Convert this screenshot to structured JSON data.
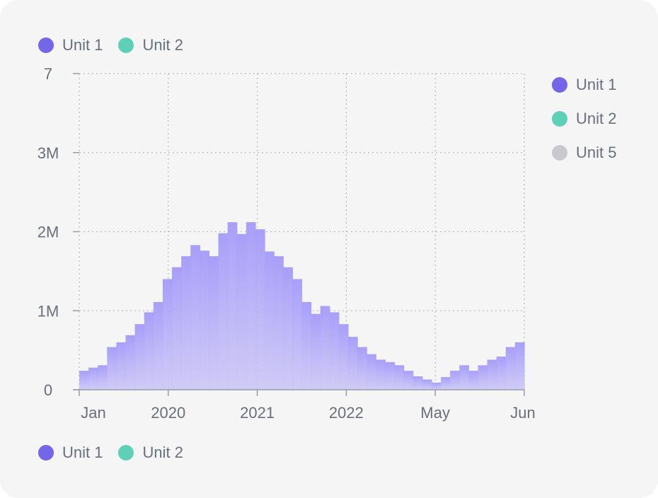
{
  "legend_top": [
    {
      "label": "Unit 1",
      "color": "#7366e8"
    },
    {
      "label": "Unit 2",
      "color": "#5fd0b8"
    }
  ],
  "legend_right": [
    {
      "label": "Unit 1",
      "color": "#7366e8"
    },
    {
      "label": "Unit 2",
      "color": "#5fd0b8"
    },
    {
      "label": "Unit 5",
      "color": "#c7c9cf"
    }
  ],
  "legend_bottom": [
    {
      "label": "Unit 1",
      "color": "#7366e8"
    },
    {
      "label": "Unit 2",
      "color": "#5fd0b8"
    }
  ],
  "chart_data": {
    "type": "area",
    "step": true,
    "series": [
      {
        "name": "Unit 1",
        "color": "#a79cf8",
        "values": [
          0.24,
          0.28,
          0.31,
          0.54,
          0.6,
          0.69,
          0.83,
          0.98,
          1.11,
          1.4,
          1.55,
          1.69,
          1.83,
          1.76,
          1.69,
          1.98,
          2.12,
          1.97,
          2.12,
          2.03,
          1.75,
          1.69,
          1.55,
          1.4,
          1.11,
          0.96,
          1.06,
          0.98,
          0.83,
          0.67,
          0.54,
          0.45,
          0.38,
          0.35,
          0.31,
          0.24,
          0.17,
          0.13,
          0.09,
          0.16,
          0.24,
          0.31,
          0.24,
          0.31,
          0.38,
          0.42,
          0.54,
          0.6
        ]
      }
    ],
    "x_tick_labels": [
      "Jan",
      "2020",
      "2021",
      "2022",
      "May",
      "Jun"
    ],
    "y_tick_labels": [
      "0",
      "1M",
      "2M",
      "3M",
      "7"
    ],
    "ylim": [
      0,
      4
    ],
    "grid": true,
    "legend_placement": "top-left, right, bottom-left"
  }
}
